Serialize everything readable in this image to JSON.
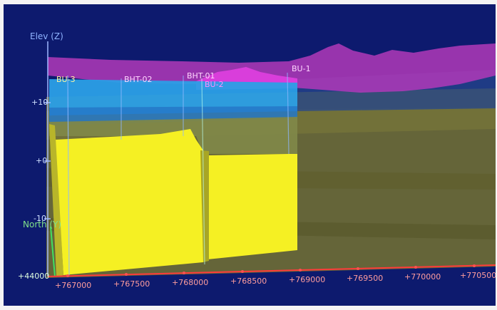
{
  "viewer": {
    "elev_axis_label": "Elev (Z)",
    "north_axis_label": "North (Y)",
    "origin_label": "+44000",
    "z_ticks": [
      "+10",
      "+0",
      "-10"
    ],
    "x_ticks": [
      "+767000",
      "+767500",
      "+768000",
      "+768500",
      "+769000",
      "+769500",
      "+770000",
      "+770500"
    ],
    "boreholes": [
      "BU-3",
      "BHT-02",
      "BHT-01",
      "BU-2",
      "BU-1"
    ]
  },
  "colors": {
    "background": "#0d1a6e",
    "terrain": "#c63fc8",
    "upper_layer": "#29a6e8",
    "core_block": "#f6f227",
    "lower_layers": "#7a7a2e",
    "axis_x": "#ff3b3b"
  }
}
